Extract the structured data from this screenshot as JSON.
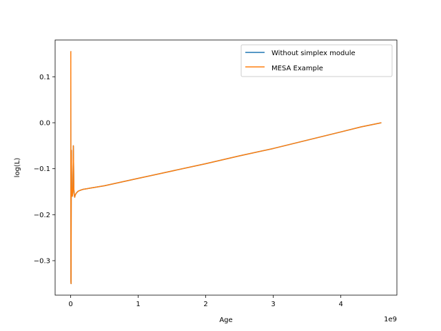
{
  "chart_data": {
    "type": "line",
    "title": "",
    "xlabel": "Age",
    "ylabel": "log(L)",
    "x_offset_label": "1e9",
    "x_scale": 1000000000,
    "xlim": [
      -0.23,
      4.83
    ],
    "ylim": [
      -0.375,
      0.18
    ],
    "x_ticks": [
      0,
      1,
      2,
      3,
      4
    ],
    "x_tick_labels": [
      "0",
      "1",
      "2",
      "3",
      "4"
    ],
    "y_ticks": [
      -0.3,
      -0.2,
      -0.1,
      0.0,
      0.1
    ],
    "y_tick_labels": [
      "−0.3",
      "−0.2",
      "−0.1",
      "0.0",
      "0.1"
    ],
    "grid": false,
    "legend_position": "top-right",
    "series": [
      {
        "name": "Without simplex module",
        "color": "#1f77b4",
        "x": [
          0.0,
          0.002,
          0.004,
          0.006,
          0.01,
          0.016,
          0.024,
          0.03,
          0.034,
          0.04,
          0.048,
          0.056,
          0.06,
          0.066,
          0.075,
          0.09,
          0.11,
          0.14,
          0.18,
          0.22,
          0.3,
          0.5,
          1.0,
          1.5,
          2.0,
          2.5,
          3.0,
          3.5,
          4.0,
          4.3,
          4.6
        ],
        "y": [
          0.155,
          0.155,
          -0.345,
          -0.35,
          -0.06,
          -0.14,
          -0.16,
          -0.155,
          -0.145,
          -0.05,
          -0.145,
          -0.16,
          -0.162,
          -0.158,
          -0.155,
          -0.152,
          -0.149,
          -0.147,
          -0.145,
          -0.144,
          -0.142,
          -0.137,
          -0.121,
          -0.105,
          -0.089,
          -0.072,
          -0.056,
          -0.038,
          -0.02,
          -0.009,
          0.0
        ]
      },
      {
        "name": "MESA Example",
        "color": "#ff7f0e",
        "x": [
          0.0,
          0.002,
          0.004,
          0.006,
          0.01,
          0.016,
          0.024,
          0.03,
          0.034,
          0.04,
          0.048,
          0.056,
          0.06,
          0.066,
          0.075,
          0.09,
          0.11,
          0.14,
          0.18,
          0.22,
          0.3,
          0.5,
          1.0,
          1.5,
          2.0,
          2.5,
          3.0,
          3.5,
          4.0,
          4.3,
          4.6
        ],
        "y": [
          0.155,
          0.155,
          -0.345,
          -0.35,
          -0.06,
          -0.14,
          -0.16,
          -0.155,
          -0.145,
          -0.05,
          -0.145,
          -0.16,
          -0.162,
          -0.158,
          -0.155,
          -0.152,
          -0.149,
          -0.147,
          -0.145,
          -0.144,
          -0.142,
          -0.137,
          -0.121,
          -0.105,
          -0.089,
          -0.072,
          -0.056,
          -0.038,
          -0.02,
          -0.009,
          0.0
        ]
      }
    ]
  }
}
